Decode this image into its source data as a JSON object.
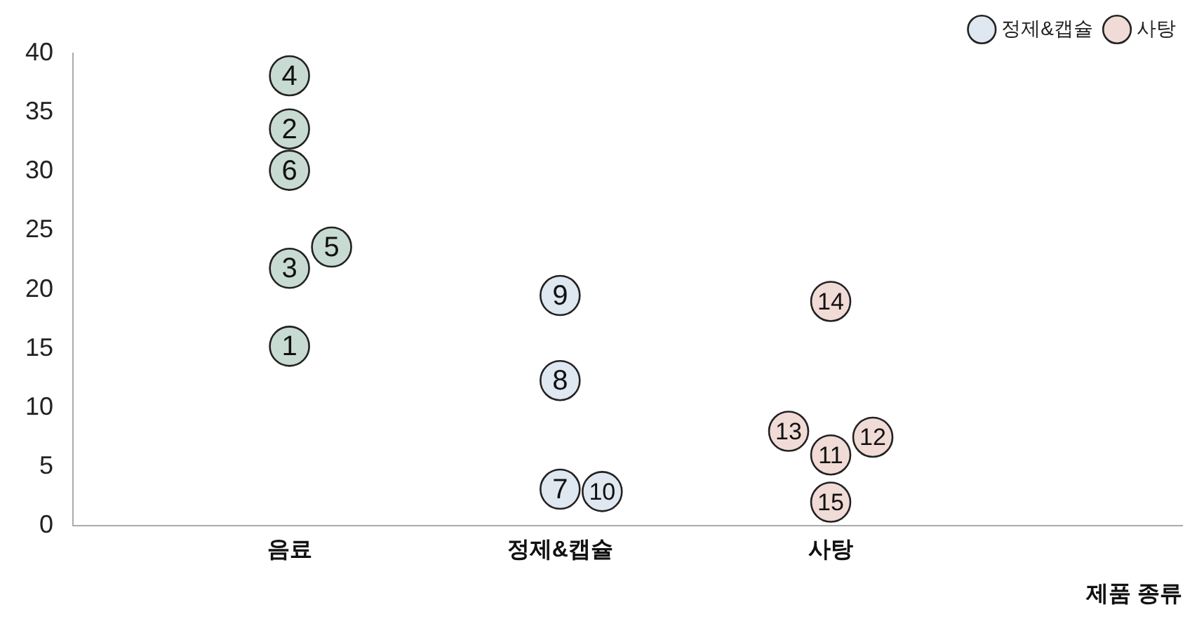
{
  "chart_data": {
    "type": "scatter",
    "xlabel": "제품 종류",
    "categories": [
      "음료",
      "정제&캡슐",
      "사탕"
    ],
    "ylim": [
      0,
      40
    ],
    "yticks": [
      0,
      5,
      10,
      15,
      20,
      25,
      30,
      35,
      40
    ],
    "grid": false,
    "legend": "top right",
    "marker": "circle",
    "series": [
      {
        "color": "#c8dbd3",
        "x": [
          "음료",
          "음료",
          "음료",
          "음료",
          "음료",
          "음료"
        ],
        "values": [
          15.2,
          33.6,
          21.8,
          38.1,
          23.6,
          30.1
        ]
      },
      {
        "name": "정제&캡슐",
        "color": "#dfe7f1",
        "x": [
          "정제&캡슐",
          "정제&캡슐",
          "정제&캡슐",
          "정제&캡슐"
        ],
        "values": [
          3.1,
          12.3,
          19.5,
          2.9
        ]
      },
      {
        "name": "사탕",
        "color": "#f1dbd6",
        "x": [
          "사탕",
          "사탕",
          "사탕",
          "사탕",
          "사탕"
        ],
        "values": [
          6.0,
          7.5,
          8.0,
          19.0,
          2.0
        ]
      }
    ],
    "annotations": [
      {
        "text": "1",
        "x": "음료",
        "y": 15.2
      },
      {
        "text": "2",
        "x": "음료",
        "y": 33.6
      },
      {
        "text": "3",
        "x": "음료",
        "y": 21.8
      },
      {
        "text": "4",
        "x": "음료",
        "y": 38.1
      },
      {
        "text": "5",
        "x": "음료",
        "y": 23.6
      },
      {
        "text": "6",
        "x": "음료",
        "y": 30.1
      },
      {
        "text": "7",
        "x": "정제&캡슐",
        "y": 3.1
      },
      {
        "text": "8",
        "x": "정제&캡슐",
        "y": 12.3
      },
      {
        "text": "9",
        "x": "정제&캡슐",
        "y": 19.5
      },
      {
        "text": "10",
        "x": "정제&캡슐",
        "y": 2.9
      },
      {
        "text": "11",
        "x": "사탕",
        "y": 6.0
      },
      {
        "text": "12",
        "x": "사탕",
        "y": 7.5
      },
      {
        "text": "13",
        "x": "사탕",
        "y": 8.0
      },
      {
        "text": "14",
        "x": "사탕",
        "y": 19.0
      },
      {
        "text": "15",
        "x": "사탕",
        "y": 2.0
      }
    ]
  }
}
